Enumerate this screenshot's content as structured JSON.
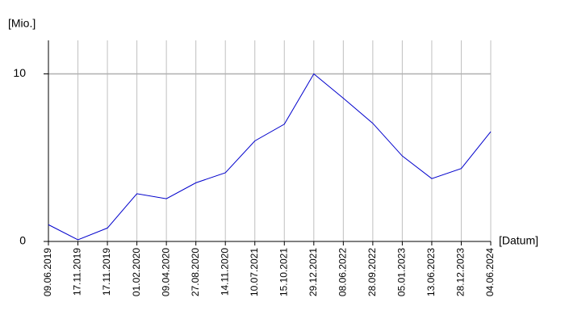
{
  "chart_data": {
    "type": "line",
    "y_label": "[Mio.]",
    "x_label": "[Datum]",
    "categories": [
      "09.06.2019",
      "17.11.2019",
      "17.11.2019",
      "01.02.2020",
      "09.04.2020",
      "27.08.2020",
      "14.11.2020",
      "10.07.2021",
      "15.10.2021",
      "29.12.2021",
      "08.06.2022",
      "28.09.2022",
      "05.01.2023",
      "13.06.2023",
      "28.12.2023",
      "04.06.2024"
    ],
    "values": [
      1.0,
      0.1,
      0.8,
      2.85,
      2.55,
      3.5,
      4.1,
      6.0,
      7.0,
      10.0,
      8.55,
      7.05,
      5.1,
      3.75,
      4.35,
      6.55
    ],
    "color": "#0000cc",
    "ylim": [
      0,
      12
    ],
    "yticks": [
      0,
      10
    ],
    "grid": true
  }
}
